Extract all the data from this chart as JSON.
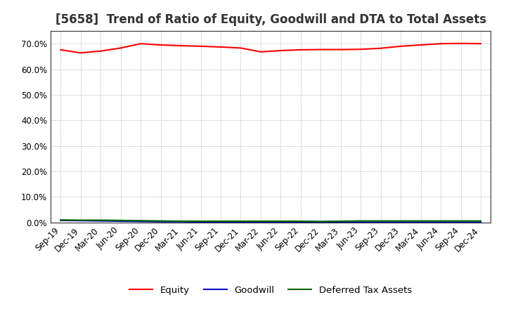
{
  "title": "[5658]  Trend of Ratio of Equity, Goodwill and DTA to Total Assets",
  "x_labels": [
    "Sep-19",
    "Dec-19",
    "Mar-20",
    "Jun-20",
    "Sep-20",
    "Dec-20",
    "Mar-21",
    "Jun-21",
    "Sep-21",
    "Dec-21",
    "Mar-22",
    "Jun-22",
    "Sep-22",
    "Dec-22",
    "Mar-23",
    "Jun-23",
    "Sep-23",
    "Dec-23",
    "Mar-24",
    "Jun-24",
    "Sep-24",
    "Dec-24"
  ],
  "equity": [
    0.676,
    0.664,
    0.671,
    0.683,
    0.7,
    0.695,
    0.692,
    0.69,
    0.687,
    0.683,
    0.668,
    0.673,
    0.676,
    0.677,
    0.677,
    0.678,
    0.682,
    0.69,
    0.695,
    0.7,
    0.701,
    0.7
  ],
  "goodwill": [
    0.008,
    0.007,
    0.006,
    0.005,
    0.004,
    0.003,
    0.003,
    0.002,
    0.002,
    0.002,
    0.002,
    0.002,
    0.002,
    0.001,
    0.001,
    0.001,
    0.001,
    0.001,
    0.001,
    0.001,
    0.001,
    0.001
  ],
  "dta": [
    0.01,
    0.009,
    0.009,
    0.008,
    0.007,
    0.006,
    0.005,
    0.005,
    0.005,
    0.005,
    0.005,
    0.005,
    0.005,
    0.004,
    0.005,
    0.006,
    0.006,
    0.006,
    0.006,
    0.006,
    0.006,
    0.006
  ],
  "equity_color": "#ff0000",
  "goodwill_color": "#0000cc",
  "dta_color": "#006400",
  "background_color": "#ffffff",
  "plot_bg_color": "#ffffff",
  "grid_color": "#999999",
  "border_color": "#333333",
  "ylim": [
    0.0,
    0.75
  ],
  "yticks": [
    0.0,
    0.1,
    0.2,
    0.3,
    0.4,
    0.5,
    0.6,
    0.7
  ],
  "legend_labels": [
    "Equity",
    "Goodwill",
    "Deferred Tax Assets"
  ],
  "title_fontsize": 12,
  "tick_fontsize": 8.5,
  "legend_fontsize": 9.5
}
